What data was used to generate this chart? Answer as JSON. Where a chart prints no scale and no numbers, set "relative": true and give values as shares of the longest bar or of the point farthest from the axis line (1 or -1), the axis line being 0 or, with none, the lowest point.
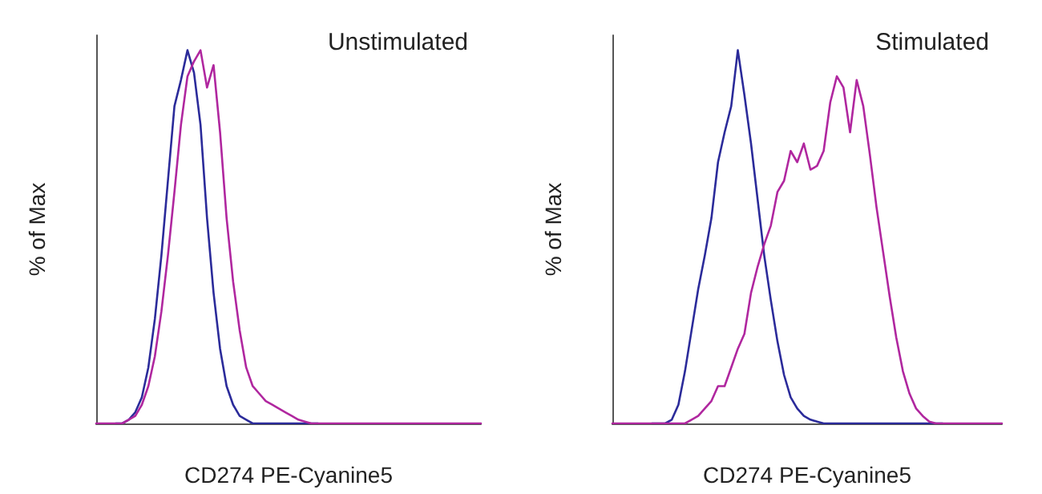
{
  "chart_data": [
    {
      "type": "line",
      "title": "Unstimulated",
      "xlabel": "CD274 PE-Cyanine5",
      "ylabel": "% of Max",
      "relative": true,
      "grid": false,
      "marker": "none",
      "line_style": "solid",
      "categories": [
        null,
        null,
        null,
        null,
        null,
        null,
        null,
        null,
        null,
        null,
        null,
        null,
        null,
        null,
        null,
        null,
        null,
        null,
        null,
        null,
        null,
        null,
        null,
        null,
        null,
        null,
        null,
        null,
        null,
        null,
        null,
        null,
        null,
        null,
        null,
        null,
        null,
        null,
        null,
        null,
        null,
        null,
        null,
        null,
        null,
        null,
        null,
        null,
        null,
        null,
        null,
        null,
        null,
        null,
        null,
        null,
        null,
        null,
        null,
        null
      ],
      "series": [
        {
          "color": "#2b2b9a",
          "values": [
            null,
            null,
            null,
            0,
            0,
            0.01,
            0.03,
            0.07,
            0.15,
            0.28,
            0.45,
            0.65,
            0.85,
            0.92,
            1.0,
            0.94,
            0.8,
            0.55,
            0.35,
            0.2,
            0.1,
            0.05,
            0.02,
            0.01,
            0,
            0,
            0,
            0,
            0,
            0,
            0,
            0,
            0,
            0,
            0,
            null,
            null,
            null,
            null,
            null,
            null,
            null,
            null,
            null,
            null,
            null,
            null,
            null,
            null,
            null,
            null,
            null,
            null,
            null,
            null,
            null,
            null,
            null,
            null,
            null
          ]
        },
        {
          "color": "#b0279f",
          "values": [
            0,
            0,
            0,
            0,
            0,
            0.01,
            0.02,
            0.05,
            0.1,
            0.18,
            0.3,
            0.45,
            0.62,
            0.8,
            0.93,
            0.97,
            1.0,
            0.9,
            0.96,
            0.78,
            0.55,
            0.38,
            0.25,
            0.15,
            0.1,
            0.08,
            0.06,
            0.05,
            0.04,
            0.03,
            0.02,
            0.01,
            0.005,
            0,
            0,
            0,
            0,
            0,
            0,
            0,
            0,
            0,
            0,
            0,
            0,
            0,
            0,
            0,
            0,
            0,
            0,
            0,
            0,
            0,
            0,
            0,
            0,
            0,
            0,
            0
          ]
        }
      ]
    },
    {
      "type": "line",
      "title": "Stimulated",
      "xlabel": "CD274 PE-Cyanine5",
      "ylabel": "% of Max",
      "relative": true,
      "grid": false,
      "marker": "none",
      "line_style": "solid",
      "categories": [
        null,
        null,
        null,
        null,
        null,
        null,
        null,
        null,
        null,
        null,
        null,
        null,
        null,
        null,
        null,
        null,
        null,
        null,
        null,
        null,
        null,
        null,
        null,
        null,
        null,
        null,
        null,
        null,
        null,
        null,
        null,
        null,
        null,
        null,
        null,
        null,
        null,
        null,
        null,
        null,
        null,
        null,
        null,
        null,
        null,
        null,
        null,
        null,
        null,
        null,
        null,
        null,
        null,
        null,
        null,
        null,
        null,
        null,
        null,
        null
      ],
      "series": [
        {
          "color": "#2b2b9a",
          "values": [
            null,
            null,
            null,
            null,
            null,
            null,
            0,
            0,
            0,
            0.01,
            0.05,
            0.14,
            0.25,
            0.36,
            0.45,
            0.55,
            0.7,
            0.78,
            0.85,
            1.0,
            0.88,
            0.75,
            0.6,
            0.45,
            0.33,
            0.22,
            0.13,
            0.07,
            0.04,
            0.02,
            0.01,
            0.005,
            0,
            0,
            0,
            0,
            0,
            0,
            0,
            0,
            0,
            0,
            0,
            0,
            0,
            0,
            0,
            0,
            0,
            0,
            0,
            null,
            null,
            null,
            null,
            null,
            null,
            null,
            null,
            null
          ]
        },
        {
          "color": "#b0279f",
          "values": [
            0,
            0,
            0,
            0,
            0,
            0,
            0,
            0,
            0,
            0,
            0,
            0,
            0.01,
            0.02,
            0.04,
            0.06,
            0.1,
            0.1,
            0.15,
            0.2,
            0.24,
            0.35,
            0.42,
            0.48,
            0.53,
            0.62,
            0.65,
            0.73,
            0.7,
            0.75,
            0.68,
            0.69,
            0.73,
            0.86,
            0.93,
            0.9,
            0.78,
            0.92,
            0.85,
            0.72,
            0.58,
            0.46,
            0.34,
            0.23,
            0.14,
            0.08,
            0.04,
            0.02,
            0.005,
            0,
            0,
            0,
            0,
            0,
            0,
            0,
            0,
            0,
            0,
            0
          ]
        }
      ]
    }
  ]
}
